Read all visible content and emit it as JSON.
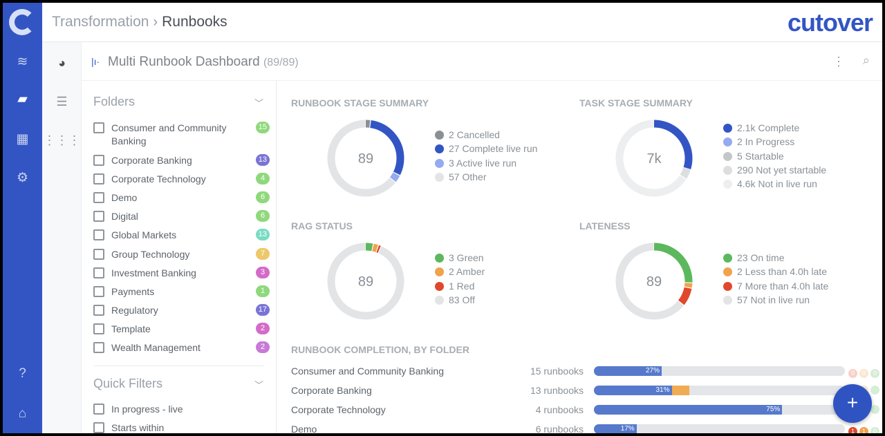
{
  "header": {
    "breadcrumb_parent": "Transformation",
    "breadcrumb_sep": "›",
    "breadcrumb_current": "Runbooks",
    "brand": "cutover"
  },
  "subheader": {
    "title": "Multi Runbook Dashboard",
    "count": "(89/89)"
  },
  "folders": {
    "title": "Folders",
    "items": [
      {
        "label": "Consumer and Community Banking",
        "count": "15",
        "color": "#8fd97c"
      },
      {
        "label": "Corporate Banking",
        "count": "13",
        "color": "#7a74d6"
      },
      {
        "label": "Corporate Technology",
        "count": "4",
        "color": "#8fd97c"
      },
      {
        "label": "Demo",
        "count": "6",
        "color": "#8fd97c"
      },
      {
        "label": "Digital",
        "count": "6",
        "color": "#8fd97c"
      },
      {
        "label": "Global Markets",
        "count": "13",
        "color": "#79dcc2"
      },
      {
        "label": "Group Technology",
        "count": "7",
        "color": "#edc86a"
      },
      {
        "label": "Investment Banking",
        "count": "3",
        "color": "#d46bc8"
      },
      {
        "label": "Payments",
        "count": "1",
        "color": "#8fd97c"
      },
      {
        "label": "Regulatory",
        "count": "17",
        "color": "#7a74d6"
      },
      {
        "label": "Template",
        "count": "2",
        "color": "#d46bc8"
      },
      {
        "label": "Wealth Management",
        "count": "2",
        "color": "#c77ad8"
      }
    ]
  },
  "quick_filters": {
    "title": "Quick Filters",
    "items": [
      "In progress - live",
      "Starts within"
    ]
  },
  "panels": [
    {
      "title": "RUNBOOK STAGE SUMMARY",
      "center": "89",
      "segments": [
        {
          "label": "2 Cancelled",
          "value": 2,
          "color": "#8a8f94"
        },
        {
          "label": "27 Complete live run",
          "value": 27,
          "color": "#3355c4"
        },
        {
          "label": "3 Active live run",
          "value": 3,
          "color": "#95aaf0"
        },
        {
          "label": "57 Other",
          "value": 57,
          "color": "#e2e4e6"
        }
      ]
    },
    {
      "title": "TASK STAGE SUMMARY",
      "center": "7k",
      "segments": [
        {
          "label": "2.1k Complete",
          "value": 2100,
          "color": "#3355c4"
        },
        {
          "label": "2 In Progress",
          "value": 2,
          "color": "#95aaf0"
        },
        {
          "label": "5 Startable",
          "value": 5,
          "color": "#c4c7ca"
        },
        {
          "label": "290 Not yet startable",
          "value": 290,
          "color": "#dcdee0"
        },
        {
          "label": "4.6k Not in live run",
          "value": 4600,
          "color": "#eceeef"
        }
      ]
    },
    {
      "title": "RAG STATUS",
      "center": "89",
      "segments": [
        {
          "label": "3 Green",
          "value": 3,
          "color": "#5cb85c"
        },
        {
          "label": "2 Amber",
          "value": 2,
          "color": "#f0a34a"
        },
        {
          "label": "1 Red",
          "value": 1,
          "color": "#e0482e"
        },
        {
          "label": "83 Off",
          "value": 83,
          "color": "#e2e4e6"
        }
      ]
    },
    {
      "title": "LATENESS",
      "center": "89",
      "segments": [
        {
          "label": "23 On time",
          "value": 23,
          "color": "#5cb85c"
        },
        {
          "label": "2 Less than 4.0h late",
          "value": 2,
          "color": "#f0a34a"
        },
        {
          "label": "7 More than 4.0h late",
          "value": 7,
          "color": "#e0482e"
        },
        {
          "label": "57 Not in live run",
          "value": 57,
          "color": "#e2e4e6"
        }
      ]
    }
  ],
  "completion": {
    "title": "RUNBOOK COMPLETION, BY FOLDER",
    "rows": [
      {
        "name": "Consumer and Community Banking",
        "count": "15 runbooks",
        "pct": 27,
        "pct_label": "27%",
        "amber": 0,
        "rag": [
          "0",
          "0",
          "0"
        ],
        "faded": true
      },
      {
        "name": "Corporate Banking",
        "count": "13 runbooks",
        "pct": 31,
        "pct_label": "31%",
        "amber": 7,
        "rag": [
          "0",
          "",
          ""
        ],
        "faded": true
      },
      {
        "name": "Corporate Technology",
        "count": "4 runbooks",
        "pct": 75,
        "pct_label": "75%",
        "amber": 0,
        "rag": [
          "",
          "",
          ""
        ],
        "faded": true
      },
      {
        "name": "Demo",
        "count": "6 runbooks",
        "pct": 17,
        "pct_label": "17%",
        "amber": 0,
        "rag": [
          "1",
          "1",
          "0"
        ],
        "faded": false
      }
    ]
  },
  "fab_label": "+"
}
